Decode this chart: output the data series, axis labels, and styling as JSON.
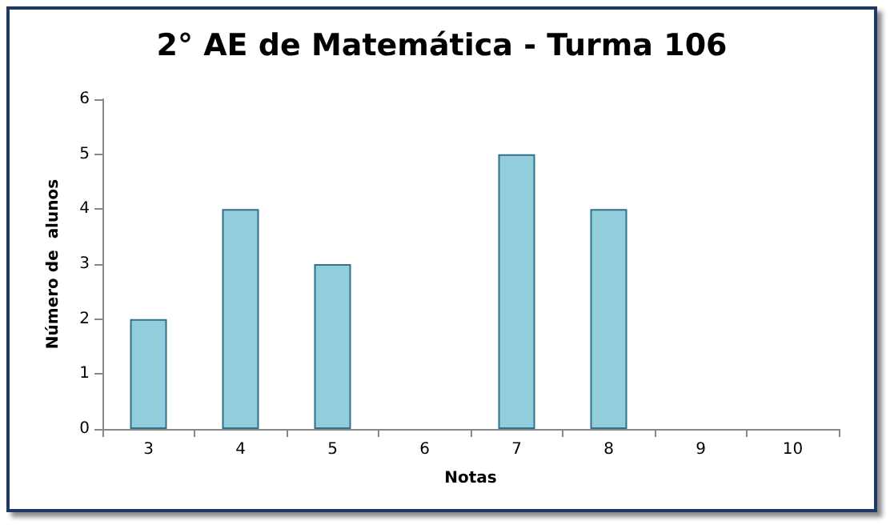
{
  "chart_data": {
    "type": "bar",
    "title": "2° AE de Matemática - Turma 106",
    "xlabel": "Notas",
    "ylabel": "Número de  alunos",
    "categories": [
      "3",
      "4",
      "5",
      "6",
      "7",
      "8",
      "9",
      "10"
    ],
    "values": [
      2,
      4,
      3,
      0,
      5,
      4,
      0,
      0
    ],
    "color": "#92cddc",
    "ylim": [
      0,
      6
    ],
    "yticks": [
      0,
      1,
      2,
      3,
      4,
      5,
      6
    ],
    "grid": false
  }
}
